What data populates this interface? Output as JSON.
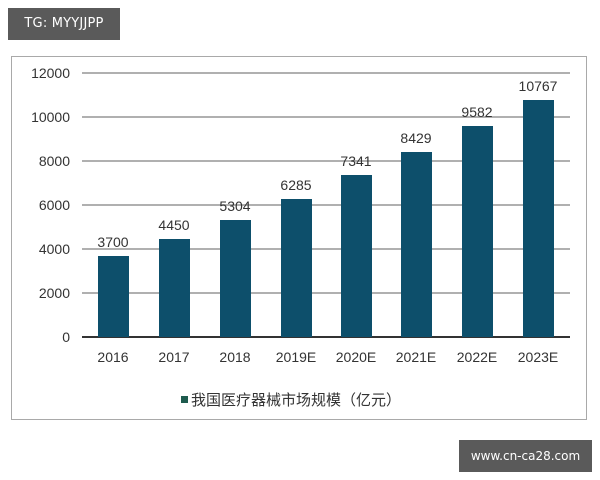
{
  "watermarks": {
    "top_left": "TG: MYYJJPP",
    "bottom_right": "www.cn-ca28.com"
  },
  "chart_data": {
    "type": "bar",
    "title": "",
    "categories": [
      "2016",
      "2017",
      "2018",
      "2019E",
      "2020E",
      "2021E",
      "2022E",
      "2023E"
    ],
    "values": [
      3700,
      4450,
      5304,
      6285,
      7341,
      8429,
      9582,
      10767
    ],
    "series": [
      {
        "name": "我国医疗器械市场规模（亿元）",
        "values": [
          3700,
          4450,
          5304,
          6285,
          7341,
          8429,
          9582,
          10767
        ],
        "color": "#0d4f6b"
      }
    ],
    "xlabel": "",
    "ylabel": "",
    "ylim": [
      0,
      12000
    ],
    "yticks": [
      "0",
      "2000",
      "4000",
      "6000",
      "8000",
      "10000",
      "12000"
    ],
    "grid": true,
    "legend_position": "bottom",
    "data_labels": [
      "3700",
      "4450",
      "5304",
      "6285",
      "7341",
      "8429",
      "9582",
      "10767"
    ]
  },
  "legend": {
    "label": "我国医疗器械市场规模（亿元）",
    "swatch_color": "#1e5b4e"
  },
  "colors": {
    "bar": "#0d4f6b",
    "gridline": "#b0b0b0",
    "frame": "#a9a9a9",
    "watermark_bg": "#5a5a5a"
  }
}
